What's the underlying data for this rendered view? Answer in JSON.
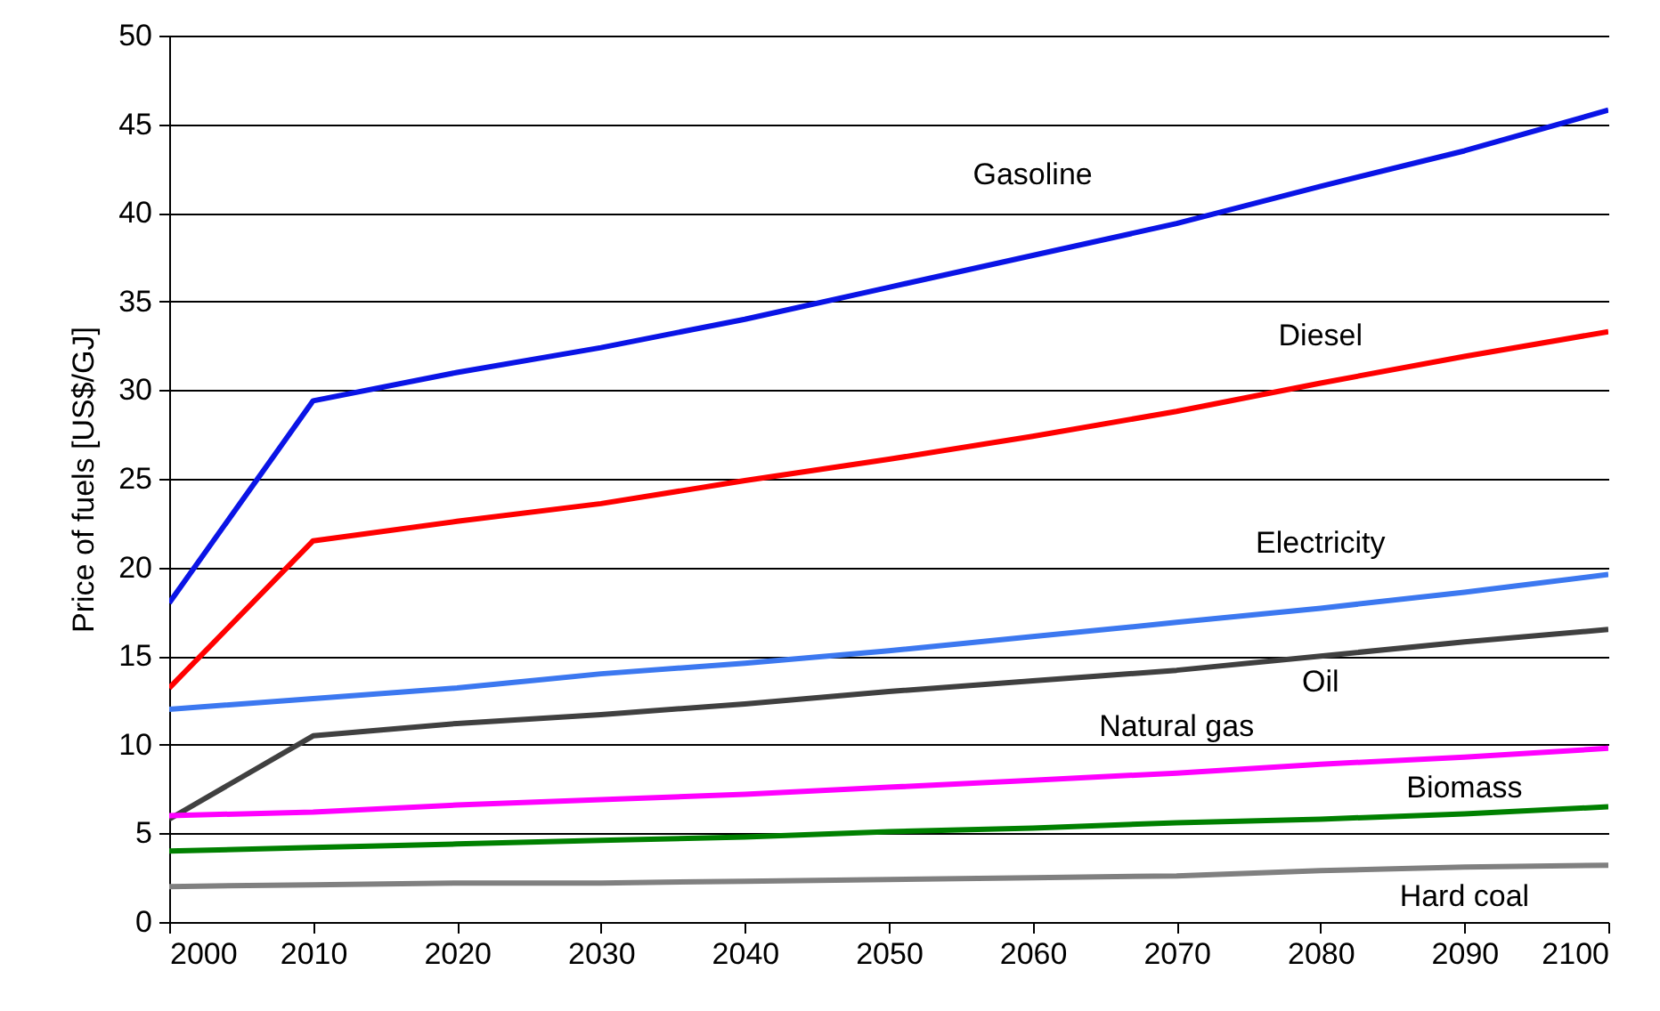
{
  "chart_data": {
    "type": "line",
    "ylabel": "Price of fuels [US$/GJ]",
    "x": [
      2000,
      2010,
      2020,
      2030,
      2040,
      2050,
      2060,
      2070,
      2080,
      2090,
      2100
    ],
    "xlim": [
      2000,
      2100
    ],
    "xticks": [
      2000,
      2010,
      2020,
      2030,
      2040,
      2050,
      2060,
      2070,
      2080,
      2090,
      2100
    ],
    "ylim": [
      0,
      50
    ],
    "yticks": [
      0,
      5,
      10,
      15,
      20,
      25,
      30,
      35,
      40,
      45,
      50
    ],
    "grid": "y",
    "series": [
      {
        "name": "Gasoline",
        "color": "#0a14e6",
        "values": [
          18,
          29.4,
          31,
          32.4,
          34,
          35.8,
          37.6,
          39.4,
          41.5,
          43.5,
          45.8
        ]
      },
      {
        "name": "Diesel",
        "color": "#ff0000",
        "values": [
          13.2,
          21.5,
          22.6,
          23.6,
          24.9,
          26.1,
          27.4,
          28.8,
          30.4,
          31.9,
          33.3
        ]
      },
      {
        "name": "Electricity",
        "color": "#3c78f0",
        "values": [
          12,
          12.6,
          13.2,
          14,
          14.6,
          15.3,
          16.1,
          16.9,
          17.7,
          18.6,
          19.6
        ]
      },
      {
        "name": "Oil",
        "color": "#404040",
        "values": [
          5.8,
          10.5,
          11.2,
          11.7,
          12.3,
          13,
          13.6,
          14.2,
          15,
          15.8,
          16.5
        ]
      },
      {
        "name": "Natural gas",
        "color": "#ff00ff",
        "values": [
          6,
          6.2,
          6.6,
          6.9,
          7.2,
          7.6,
          8,
          8.4,
          8.9,
          9.3,
          9.8
        ]
      },
      {
        "name": "Biomass",
        "color": "#008000",
        "values": [
          4,
          4.2,
          4.4,
          4.6,
          4.8,
          5.1,
          5.3,
          5.6,
          5.8,
          6.1,
          6.5
        ]
      },
      {
        "name": "Hard coal",
        "color": "#808080",
        "values": [
          2,
          2.1,
          2.2,
          2.2,
          2.3,
          2.4,
          2.5,
          2.6,
          2.9,
          3.1,
          3.2
        ]
      }
    ]
  }
}
